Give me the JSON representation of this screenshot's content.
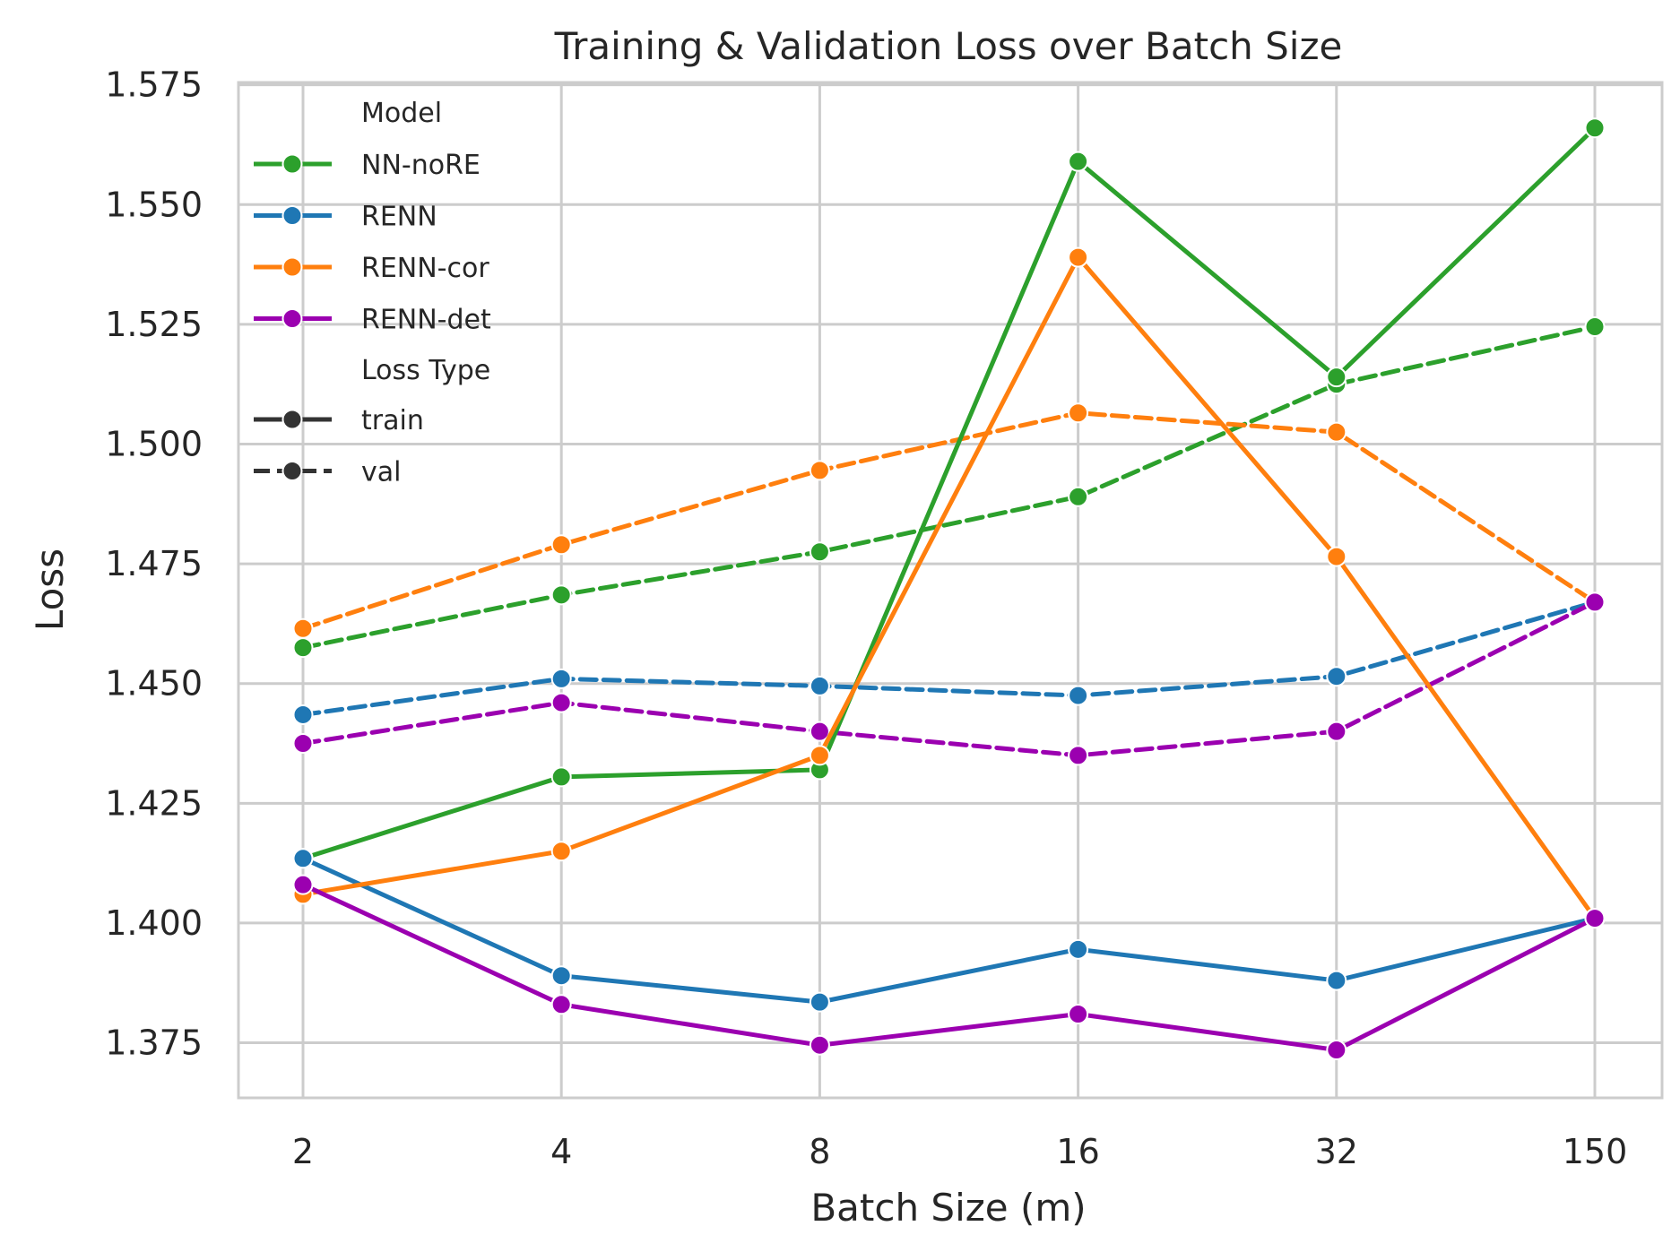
{
  "chart_data": {
    "type": "line",
    "title": "Training & Validation Loss over Batch Size",
    "xlabel": "Batch Size (m)",
    "ylabel": "Loss",
    "categories": [
      "2",
      "4",
      "8",
      "16",
      "32",
      "150"
    ],
    "ylim": [
      1.3635,
      1.5755
    ],
    "yticks": [
      "1.375",
      "1.400",
      "1.425",
      "1.450",
      "1.475",
      "1.500",
      "1.525",
      "1.550",
      "1.575"
    ],
    "grid": true,
    "legend_position": "top-left",
    "legend": {
      "hue_title": "Model",
      "style_title": "Loss Type",
      "styles": [
        {
          "name": "train",
          "dash": "solid"
        },
        {
          "name": "val",
          "dash": "dashed"
        }
      ]
    },
    "colors": {
      "NN-noRE": "#2ca02c",
      "RENN": "#1f77b4",
      "RENN-cor": "#ff7f0e",
      "RENN-det": "#9b00b0"
    },
    "series": [
      {
        "name": "NN-noRE",
        "loss_type": "train",
        "values": [
          1.4135,
          1.4305,
          1.432,
          1.559,
          1.514,
          1.566
        ]
      },
      {
        "name": "NN-noRE",
        "loss_type": "val",
        "values": [
          1.4575,
          1.4685,
          1.4775,
          1.489,
          1.5125,
          1.5245
        ]
      },
      {
        "name": "RENN",
        "loss_type": "train",
        "values": [
          1.4135,
          1.389,
          1.3835,
          1.3945,
          1.388,
          1.401
        ]
      },
      {
        "name": "RENN",
        "loss_type": "val",
        "values": [
          1.4435,
          1.451,
          1.4495,
          1.4475,
          1.4515,
          1.467
        ]
      },
      {
        "name": "RENN-cor",
        "loss_type": "train",
        "values": [
          1.406,
          1.415,
          1.435,
          1.539,
          1.4765,
          1.401
        ]
      },
      {
        "name": "RENN-cor",
        "loss_type": "val",
        "values": [
          1.4615,
          1.479,
          1.4945,
          1.5065,
          1.5025,
          1.467
        ]
      },
      {
        "name": "RENN-det",
        "loss_type": "train",
        "values": [
          1.408,
          1.383,
          1.3745,
          1.381,
          1.3735,
          1.401
        ]
      },
      {
        "name": "RENN-det",
        "loss_type": "val",
        "values": [
          1.4375,
          1.446,
          1.44,
          1.435,
          1.44,
          1.467
        ]
      }
    ]
  }
}
